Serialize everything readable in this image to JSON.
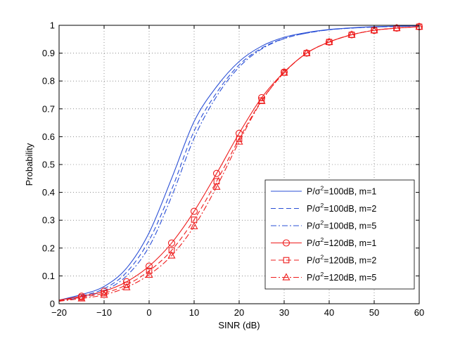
{
  "chart_data": {
    "type": "line",
    "title": "",
    "xlabel": "SINR (dB)",
    "ylabel": "Probability",
    "xlim": [
      -20,
      60
    ],
    "ylim": [
      0,
      1
    ],
    "xticks": [
      -20,
      -10,
      0,
      10,
      20,
      30,
      40,
      50,
      60
    ],
    "xtick_labels": [
      "−20",
      "−10",
      "0",
      "10",
      "20",
      "30",
      "40",
      "50",
      "60"
    ],
    "yticks": [
      0,
      0.1,
      0.2,
      0.3,
      0.4,
      0.5,
      0.6,
      0.7,
      0.8,
      0.9,
      1
    ],
    "ytick_labels": [
      "0",
      "0.1",
      "0.2",
      "0.3",
      "0.4",
      "0.5",
      "0.6",
      "0.7",
      "0.8",
      "0.9",
      "1"
    ],
    "grid": true,
    "legend_position": "bottom-right",
    "x": [
      -20,
      -15,
      -10,
      -5,
      0,
      5,
      10,
      15,
      20,
      25,
      30,
      35,
      40,
      45,
      50,
      55,
      60
    ],
    "series": [
      {
        "name": "100dB_m1",
        "legend_pre": "P/σ",
        "legend_sup": "2",
        "legend_post": "=100dB, m=1",
        "color": "#2a4fd6",
        "dash": "solid",
        "marker": "none",
        "values": [
          0.013,
          0.033,
          0.062,
          0.128,
          0.255,
          0.45,
          0.655,
          0.78,
          0.87,
          0.925,
          0.957,
          0.974,
          0.985,
          0.991,
          0.995,
          0.997,
          0.998
        ]
      },
      {
        "name": "100dB_m2",
        "legend_pre": "P/σ",
        "legend_sup": "2",
        "legend_post": "=100dB, m=2",
        "color": "#2a4fd6",
        "dash": "dashed",
        "marker": "none",
        "values": [
          0.011,
          0.028,
          0.054,
          0.113,
          0.228,
          0.41,
          0.62,
          0.758,
          0.858,
          0.918,
          0.953,
          0.972,
          0.984,
          0.99,
          0.994,
          0.996,
          0.998
        ]
      },
      {
        "name": "100dB_m5",
        "legend_pre": "P/σ",
        "legend_sup": "2",
        "legend_post": "=100dB, m=5",
        "color": "#2a4fd6",
        "dash": "dashdot",
        "marker": "none",
        "values": [
          0.009,
          0.024,
          0.047,
          0.1,
          0.205,
          0.385,
          0.595,
          0.745,
          0.85,
          0.915,
          0.952,
          0.972,
          0.984,
          0.99,
          0.994,
          0.996,
          0.998
        ]
      },
      {
        "name": "120dB_m1",
        "legend_pre": "P/σ",
        "legend_sup": "2",
        "legend_post": "=120dB, m=1",
        "color": "#ee1c1c",
        "dash": "solid",
        "marker": "circle",
        "values": [
          0.013,
          0.027,
          0.045,
          0.079,
          0.135,
          0.218,
          0.332,
          0.468,
          0.612,
          0.74,
          0.832,
          0.9,
          0.94,
          0.966,
          0.982,
          0.99,
          0.995
        ]
      },
      {
        "name": "120dB_m2",
        "legend_pre": "P/σ",
        "legend_sup": "2",
        "legend_post": "=120dB, m=2",
        "color": "#ee1c1c",
        "dash": "dashed",
        "marker": "square",
        "values": [
          0.011,
          0.023,
          0.038,
          0.068,
          0.118,
          0.192,
          0.302,
          0.44,
          0.592,
          0.73,
          0.83,
          0.9,
          0.94,
          0.966,
          0.982,
          0.99,
          0.995
        ]
      },
      {
        "name": "120dB_m5",
        "legend_pre": "P/σ",
        "legend_sup": "2",
        "legend_post": "=120dB, m=5",
        "color": "#ee1c1c",
        "dash": "dashdot",
        "marker": "triangle",
        "values": [
          0.009,
          0.019,
          0.032,
          0.059,
          0.104,
          0.173,
          0.278,
          0.42,
          0.582,
          0.728,
          0.83,
          0.9,
          0.94,
          0.966,
          0.982,
          0.99,
          0.995
        ]
      }
    ]
  }
}
